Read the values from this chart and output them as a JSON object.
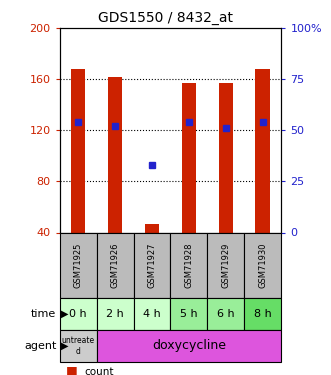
{
  "title": "GDS1550 / 8432_at",
  "samples": [
    "GSM71925",
    "GSM71926",
    "GSM71927",
    "GSM71928",
    "GSM71929",
    "GSM71930"
  ],
  "count_values": [
    168,
    162,
    47,
    157,
    157,
    168
  ],
  "percentile_pct": [
    54,
    52,
    33,
    54,
    51,
    54
  ],
  "ylim_left": [
    40,
    200
  ],
  "ylim_right": [
    0,
    100
  ],
  "yticks_left": [
    40,
    80,
    120,
    160,
    200
  ],
  "yticks_right": [
    0,
    25,
    50,
    75,
    100
  ],
  "ytick_labels_left": [
    "40",
    "80",
    "120",
    "160",
    "200"
  ],
  "ytick_labels_right": [
    "0",
    "25",
    "50",
    "75",
    "100%"
  ],
  "time_labels": [
    "0 h",
    "2 h",
    "4 h",
    "5 h",
    "6 h",
    "8 h"
  ],
  "time_colors": [
    "#ccffcc",
    "#ccffcc",
    "#ccffcc",
    "#99ee99",
    "#99ee99",
    "#66dd66"
  ],
  "bar_color": "#cc2200",
  "blue_color": "#2222cc",
  "bar_width": 0.4,
  "left_label_color": "#cc2200",
  "right_label_color": "#2222cc",
  "agent_untreated_bg": "#cccccc",
  "agent_doxy_bg": "#dd55dd",
  "sample_bg": "#bbbbbb"
}
